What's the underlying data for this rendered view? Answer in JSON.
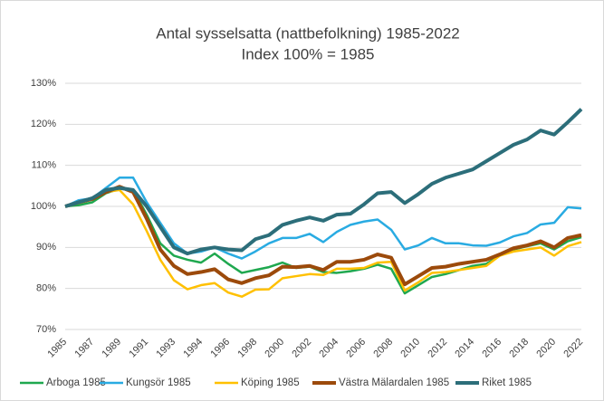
{
  "chart_data": {
    "type": "line",
    "title": "Antal sysselsatta (nattbefolkning) 1985-2022",
    "subtitle": "Index 100% = 1985",
    "categories": [
      "1985",
      "1986",
      "1987",
      "1988",
      "1989",
      "1990",
      "1991",
      "1992",
      "1993",
      "1993",
      "1994",
      "1995",
      "1996",
      "1997",
      "1998",
      "1999",
      "2000",
      "2001",
      "2002",
      "2003",
      "2004",
      "2005",
      "2006",
      "2007",
      "2008",
      "2009",
      "2010",
      "2011",
      "2012",
      "2013",
      "2014",
      "2015",
      "2016",
      "2017",
      "2018",
      "2019",
      "2020",
      "2021",
      "2022"
    ],
    "series": [
      {
        "name": "Arboga 1985",
        "color": "#1fa84f",
        "values": [
          100,
          100.3,
          101,
          103.2,
          104.3,
          104,
          98,
          91,
          88,
          87,
          86.3,
          88.5,
          86,
          83.8,
          84.5,
          85.2,
          86.3,
          85,
          85.3,
          84,
          83.8,
          84.2,
          84.8,
          85.8,
          84.8,
          78.8,
          80.8,
          82.8,
          83.5,
          84.5,
          85.5,
          86,
          88,
          89.5,
          90.3,
          91,
          89.5,
          91.5,
          92.5
        ]
      },
      {
        "name": "Kungsör 1985",
        "color": "#29abe2",
        "values": [
          100,
          101.5,
          102,
          104.5,
          107,
          107,
          101,
          96,
          91,
          88.5,
          89,
          90,
          88.5,
          87.3,
          89,
          91,
          92.3,
          92.3,
          93.3,
          91.3,
          93.8,
          95.5,
          96.3,
          96.8,
          94.3,
          89.5,
          90.5,
          92.3,
          91,
          91,
          90.5,
          90.4,
          91.2,
          92.7,
          93.5,
          95.6,
          96,
          99.8,
          99.5
        ]
      },
      {
        "name": "Köping 1985",
        "color": "#ffc000",
        "values": [
          100,
          100.8,
          101.7,
          103.5,
          104,
          100.5,
          94,
          87,
          82,
          79.8,
          80.8,
          81.3,
          79,
          78,
          79.7,
          79.8,
          82.5,
          83,
          83.5,
          83.3,
          84.8,
          84.8,
          85,
          86.3,
          86.5,
          79.5,
          81.5,
          83.8,
          84,
          84.5,
          85,
          85.5,
          88,
          89,
          89.5,
          90,
          88,
          90.3,
          91.3
        ]
      },
      {
        "name": "Västra Mälardalen 1985",
        "color": "#9c4a0b",
        "values": [
          100,
          101,
          101.8,
          103.5,
          104.8,
          103.5,
          97,
          89.5,
          85.5,
          83.5,
          84,
          84.7,
          82.2,
          81.3,
          82.5,
          83.2,
          85.3,
          85.2,
          85.5,
          84.5,
          86.5,
          86.5,
          87,
          88.3,
          87.5,
          81,
          83,
          85,
          85.3,
          86,
          86.5,
          87,
          88.3,
          89.8,
          90.5,
          91.5,
          90,
          92.3,
          93
        ]
      },
      {
        "name": "Riket 1985",
        "color": "#2c6e7a",
        "values": [
          100,
          101,
          102,
          104,
          104.5,
          104,
          100,
          95,
          90,
          88.5,
          89.5,
          90,
          89.5,
          89.3,
          92,
          93,
          95.5,
          96.5,
          97.3,
          96.5,
          98,
          98.2,
          100.5,
          103.2,
          103.5,
          100.8,
          103,
          105.5,
          107,
          108,
          109,
          111,
          113,
          115,
          116.3,
          118.5,
          117.5,
          120.5,
          123.7
        ]
      }
    ],
    "ylim": [
      70,
      130
    ],
    "yticks": [
      {
        "value": 70,
        "label": "70%"
      },
      {
        "value": 80,
        "label": "80%"
      },
      {
        "value": 90,
        "label": "90%"
      },
      {
        "value": 100,
        "label": "100%"
      },
      {
        "value": 110,
        "label": "110%"
      },
      {
        "value": 120,
        "label": "120%"
      },
      {
        "value": 130,
        "label": "130%"
      }
    ],
    "grid": true,
    "legend": "bottom"
  }
}
